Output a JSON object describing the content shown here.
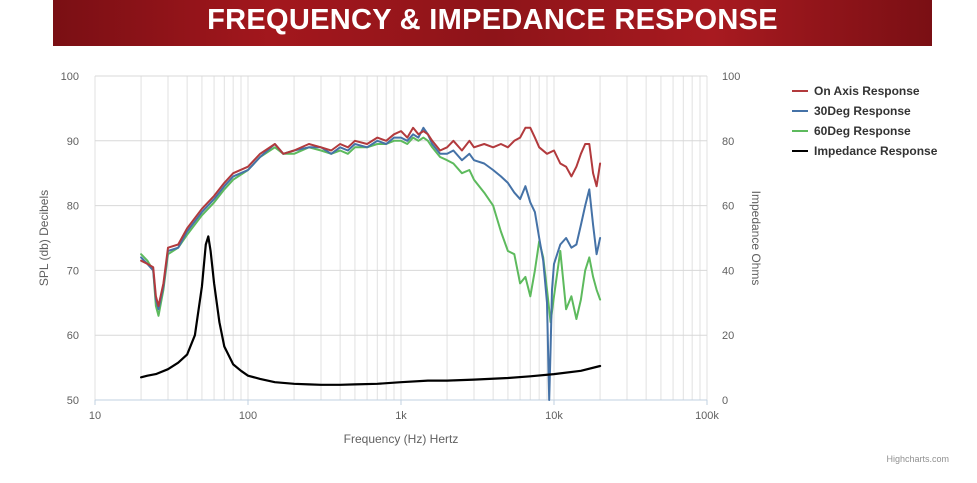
{
  "banner": {
    "title": "FREQUENCY & IMPEDANCE RESPONSE"
  },
  "credit": "Highcharts.com",
  "chart_data": {
    "type": "line",
    "title": "FREQUENCY & IMPEDANCE RESPONSE",
    "xlabel": "Frequency (Hz) Hertz",
    "ylabel": "SPL (db) Decibels",
    "y2label": "Impedance Ohms",
    "x_scale": "log",
    "xlim": [
      10,
      100000
    ],
    "ylim": [
      50,
      100
    ],
    "y2lim": [
      0,
      100
    ],
    "x_ticks": [
      "10",
      "100",
      "1k",
      "10k",
      "100k"
    ],
    "y_ticks": [
      "50",
      "60",
      "70",
      "80",
      "90",
      "100"
    ],
    "y2_ticks": [
      "0",
      "20",
      "40",
      "60",
      "80",
      "100"
    ],
    "grid": true,
    "legend_position": "top-right",
    "series": [
      {
        "name": "On Axis Response",
        "axis": "left",
        "color": "#b23a3d",
        "x": [
          20,
          22,
          24,
          25,
          26,
          28,
          30,
          35,
          40,
          50,
          60,
          70,
          80,
          100,
          120,
          150,
          170,
          200,
          250,
          300,
          350,
          400,
          450,
          500,
          600,
          700,
          800,
          900,
          1000,
          1100,
          1200,
          1300,
          1400,
          1500,
          1600,
          1800,
          2000,
          2200,
          2500,
          2800,
          3000,
          3500,
          4000,
          4500,
          5000,
          5500,
          6000,
          6500,
          7000,
          7500,
          8000,
          9000,
          10000,
          11000,
          12000,
          13000,
          14000,
          15000,
          16000,
          17000,
          18000,
          19000,
          20000
        ],
        "y": [
          71.5,
          71,
          70.5,
          66,
          64.5,
          68,
          73.5,
          74,
          76.5,
          79.5,
          81.5,
          83.5,
          85,
          86,
          88,
          89.5,
          88,
          88.5,
          89.5,
          89,
          88.5,
          89.5,
          89,
          90,
          89.5,
          90.5,
          90,
          91,
          91.5,
          90.5,
          92,
          91,
          91.5,
          91,
          90,
          88.5,
          89,
          90,
          88.5,
          90,
          89,
          89.5,
          89,
          89.5,
          89,
          90,
          90.5,
          92,
          92,
          90.5,
          89,
          88,
          88.5,
          86.5,
          86,
          84.5,
          86,
          88,
          89.5,
          89.5,
          85,
          83,
          86.5
        ]
      },
      {
        "name": "30Deg Response",
        "axis": "left",
        "color": "#4572a7",
        "x": [
          20,
          22,
          24,
          25,
          26,
          28,
          30,
          35,
          40,
          50,
          60,
          70,
          80,
          100,
          120,
          150,
          170,
          200,
          250,
          300,
          350,
          400,
          450,
          500,
          600,
          700,
          800,
          900,
          1000,
          1100,
          1200,
          1300,
          1400,
          1500,
          1600,
          1800,
          2000,
          2200,
          2500,
          2800,
          3000,
          3500,
          4000,
          4500,
          5000,
          5500,
          6000,
          6500,
          7000,
          7500,
          8000,
          8500,
          9000,
          9300,
          9500,
          9700,
          10000,
          11000,
          12000,
          13000,
          14000,
          15000,
          16000,
          17000,
          18000,
          19000,
          20000
        ],
        "y": [
          72,
          71,
          70,
          65.5,
          64,
          67.5,
          73,
          73.5,
          76,
          79,
          81,
          83,
          84.5,
          85.5,
          87.5,
          89.5,
          88,
          88.5,
          89,
          89,
          88,
          89,
          88.5,
          89.5,
          89,
          90,
          89.5,
          90.5,
          90.5,
          90,
          91,
          90.5,
          92,
          91,
          89.5,
          88,
          88,
          88.5,
          87,
          88,
          87,
          86.5,
          85.5,
          84.5,
          83.5,
          82,
          81,
          83,
          80.5,
          79,
          75,
          71.5,
          65,
          50,
          58,
          67,
          71,
          74,
          75,
          73.5,
          74,
          77,
          80,
          82.5,
          77,
          72.5,
          75
        ]
      },
      {
        "name": "60Deg Response",
        "axis": "left",
        "color": "#5dba5d",
        "x": [
          20,
          22,
          24,
          25,
          26,
          28,
          30,
          35,
          40,
          50,
          60,
          70,
          80,
          100,
          120,
          150,
          170,
          200,
          250,
          300,
          350,
          400,
          450,
          500,
          600,
          700,
          800,
          900,
          1000,
          1100,
          1200,
          1300,
          1400,
          1500,
          1600,
          1800,
          2000,
          2200,
          2500,
          2800,
          3000,
          3500,
          4000,
          4500,
          5000,
          5500,
          6000,
          6500,
          7000,
          7500,
          8000,
          8500,
          9000,
          9500,
          10000,
          11000,
          12000,
          13000,
          14000,
          15000,
          16000,
          17000,
          18000,
          19000,
          20000
        ],
        "y": [
          72.5,
          71.5,
          70,
          64.5,
          63,
          67,
          72.5,
          73.5,
          75.5,
          78.5,
          80.5,
          82.5,
          84,
          85.5,
          87.5,
          89,
          88,
          88,
          89,
          88.5,
          88,
          88.5,
          88,
          89,
          89,
          89.5,
          89.5,
          90,
          90,
          89.5,
          90.5,
          90,
          90.5,
          90,
          89,
          87.5,
          87,
          86.5,
          85,
          85.5,
          84,
          82,
          80,
          76,
          73,
          72.5,
          68,
          69,
          66,
          70,
          74.5,
          72,
          67,
          62,
          66,
          73,
          64,
          66,
          62.5,
          65.5,
          70,
          72,
          69,
          67,
          65.5
        ]
      },
      {
        "name": "Impedance Response",
        "axis": "right",
        "color": "#000000",
        "x": [
          20,
          22,
          25,
          30,
          35,
          40,
          45,
          50,
          53,
          55,
          57,
          60,
          65,
          70,
          80,
          90,
          100,
          120,
          150,
          200,
          250,
          300,
          400,
          500,
          700,
          1000,
          1500,
          2000,
          3000,
          5000,
          7000,
          10000,
          15000,
          20000
        ],
        "y": [
          7,
          7.5,
          8,
          9.5,
          11.5,
          14,
          20,
          35,
          48,
          50.5,
          46,
          36,
          24,
          16.5,
          11,
          9,
          7.5,
          6.5,
          5.5,
          5,
          4.8,
          4.7,
          4.7,
          4.8,
          5,
          5.5,
          6,
          6,
          6.3,
          6.8,
          7.3,
          8,
          9,
          10.5
        ]
      }
    ]
  }
}
